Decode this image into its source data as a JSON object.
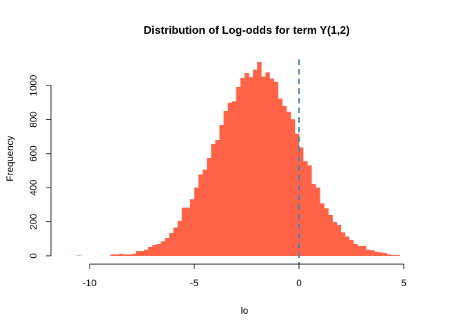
{
  "chart_data": {
    "type": "bar",
    "title": "Distribution of Log-odds for term Y(1,2)",
    "xlabel": "lo",
    "ylabel": "Frequency",
    "bin_width": 0.2,
    "bin_start": -10.6,
    "counts": [
      2,
      0,
      0,
      0,
      0,
      0,
      0,
      0,
      8,
      8,
      12,
      8,
      8,
      12,
      28,
      28,
      36,
      53,
      65,
      69,
      85,
      105,
      134,
      166,
      206,
      283,
      283,
      332,
      401,
      478,
      506,
      575,
      656,
      680,
      769,
      850,
      899,
      907,
      992,
      1045,
      1073,
      1049,
      1093,
      1138,
      1053,
      1077,
      1041,
      1021,
      923,
      879,
      846,
      802,
      717,
      636,
      555,
      531,
      421,
      401,
      308,
      279,
      239,
      198,
      182,
      138,
      113,
      93,
      69,
      57,
      57,
      36,
      32,
      24,
      20,
      16,
      8,
      4,
      4
    ],
    "xlim": [
      -10,
      5
    ],
    "ylim": [
      0,
      1000
    ],
    "x_ticks": [
      "-10",
      "-5",
      "0",
      "5"
    ],
    "y_ticks": [
      "0",
      "200",
      "400",
      "600",
      "800",
      "1000"
    ],
    "reference_line": {
      "x": 0,
      "style": "dashed",
      "color": "#4682B4"
    },
    "bar_color": "#FF6347",
    "grid": false
  }
}
